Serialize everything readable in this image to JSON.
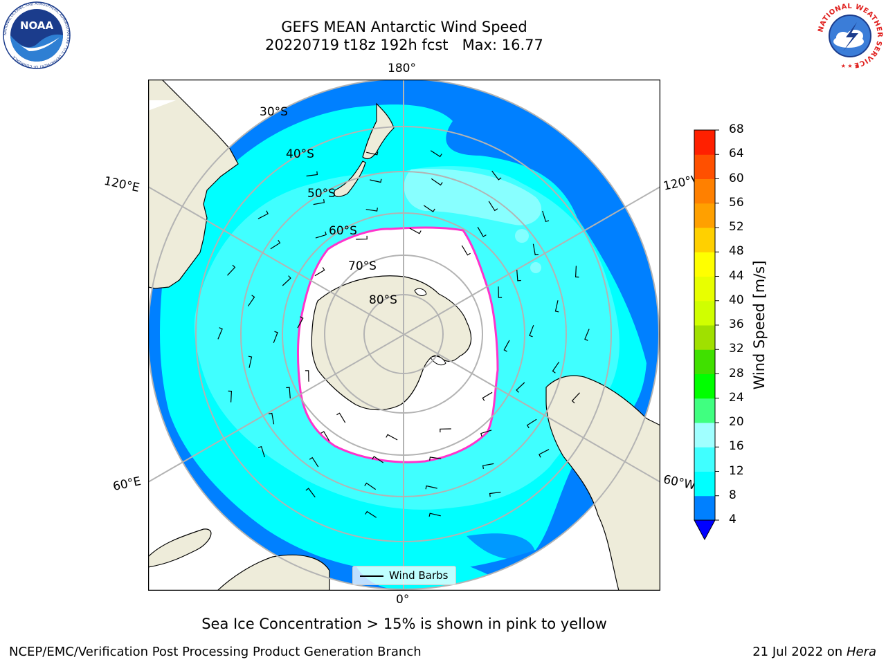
{
  "header": {
    "title_line1": "GEFS MEAN Antarctic Wind Speed",
    "title_line2": "20220719 t18z 192h fcst   Max: 16.77"
  },
  "logos": {
    "noaa": "NOAA",
    "noaa_ring_text": "NATIONAL OCEANIC AND ATMOSPHERIC ADMINISTRATION • U.S. DEPARTMENT OF COMMERCE",
    "nws_ring_text": "NATIONAL WEATHER SERVICE"
  },
  "map": {
    "projection": "south-polar-stereographic",
    "longitude_labels": {
      "top": "180°",
      "bottom": "0°",
      "upper_left": "120°E",
      "upper_right": "120°W",
      "lower_left": "60°E",
      "lower_right": "60°W"
    },
    "latitude_labels": [
      "30°S",
      "40°S",
      "50°S",
      "60°S",
      "70°S",
      "80°S"
    ],
    "colors": {
      "land": "#eeecda",
      "sea_ice": "#ffffff",
      "ice_edge": "#ff33cc",
      "gridline": "#b3b3b3"
    }
  },
  "colorbar": {
    "label": "Wind Speed [m/s]",
    "ticks": [
      "4",
      "8",
      "12",
      "16",
      "20",
      "24",
      "28",
      "32",
      "36",
      "40",
      "44",
      "48",
      "52",
      "56",
      "60",
      "64",
      "68"
    ],
    "under_color": "#0000ff",
    "colors": [
      "#0080ff",
      "#00ffff",
      "#40ffff",
      "#a0ffff",
      "#40ff80",
      "#00ff00",
      "#40e000",
      "#a0e000",
      "#d0ff00",
      "#e8ff00",
      "#ffff00",
      "#ffd000",
      "#ffa000",
      "#ff8000",
      "#ff5000",
      "#ff2000"
    ]
  },
  "legend": {
    "label": "Wind Barbs"
  },
  "notes": {
    "sea_ice": "Sea Ice Concentration > 15% is shown in pink to yellow",
    "footer_left": "NCEP/EMC/Verification Post Processing Product Generation Branch",
    "footer_date": "21 Jul 2022 on ",
    "footer_host": "Hera"
  }
}
